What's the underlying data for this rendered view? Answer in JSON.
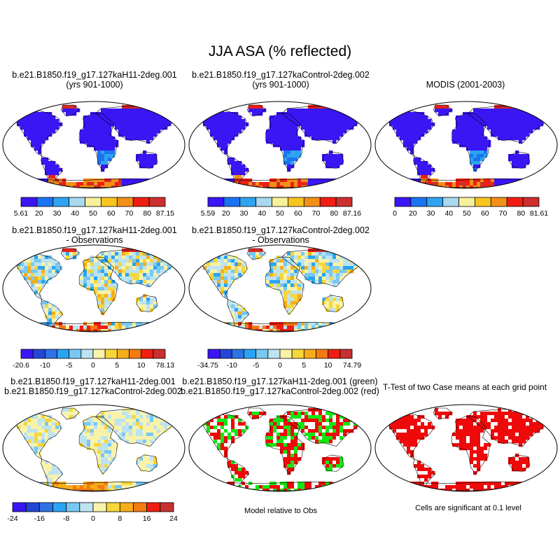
{
  "title": "JJA ASA (% reflected)",
  "panels": [
    {
      "id": "p1",
      "line1": "b.e21.B1850.f19_g17.127kaH11-2deg.001",
      "line2": "(yrs 901-1000)",
      "style": "abs"
    },
    {
      "id": "p2",
      "line1": "b.e21.B1850.f19_g17.127kaControl-2deg.002",
      "line2": "(yrs 901-1000)",
      "style": "abs"
    },
    {
      "id": "p3",
      "line1": "MODIS (2001-2003)",
      "line2": "",
      "style": "obs"
    },
    {
      "id": "p4",
      "line1": "b.e21.B1850.f19_g17.127kaH11-2deg.001",
      "line2": "- Observations",
      "style": "diff"
    },
    {
      "id": "p5",
      "line1": "b.e21.B1850.f19_g17.127kaControl-2deg.002",
      "line2": "- Observations",
      "style": "diff"
    },
    {
      "id": "p7",
      "line1": "b.e21.B1850.f19_g17.127kaH11-2deg.001",
      "line2": "b.e21.B1850.f19_g17.127kaControl-2deg.002",
      "style": "casediff"
    },
    {
      "id": "p8",
      "line1": "b.e21.B1850.f19_g17.127kaH11-2deg.001 (green)",
      "line2": "b.e21.B1850.f19_g17.127kaControl-2deg.002 (red)",
      "style": "greenred"
    },
    {
      "id": "p9",
      "line1": "T-Test of two Case means at each grid point",
      "line2": "",
      "style": "ttest"
    }
  ],
  "notes": {
    "model_relative": "Model relative to Obs",
    "significance": "Cells are significant at 0.1 level"
  },
  "colors": {
    "abs_bar": [
      "#3a16f5",
      "#1a74f2",
      "#2ea4f0",
      "#a8d9ef",
      "#f7f09b",
      "#f7c420",
      "#f29018",
      "#ef1e12",
      "#cd2e2e"
    ],
    "diff_bar": [
      "#3a16f5",
      "#2446d4",
      "#2d73e6",
      "#2aa4f2",
      "#78c8f2",
      "#bde3f2",
      "#f8f3a8",
      "#f7d63a",
      "#f6ad1a",
      "#f47a14",
      "#ef1e12",
      "#c93030"
    ],
    "case_bar": [
      "#3a16f5",
      "#2446d4",
      "#2d73e6",
      "#2aa4f2",
      "#78c8f2",
      "#bde3f2",
      "#f8f3a8",
      "#f7d63a",
      "#f6ad1a",
      "#f47a14",
      "#ef1e12",
      "#c93030"
    ],
    "green": "#14e614",
    "red": "#ee0a0a"
  },
  "chart_data": [
    {
      "type": "heatmap",
      "panel": "p1",
      "colorbar_labels": [
        "5.61",
        "20",
        "30",
        "40",
        "50",
        "60",
        "70",
        "80",
        "87.15"
      ]
    },
    {
      "type": "heatmap",
      "panel": "p2",
      "colorbar_labels": [
        "5.59",
        "20",
        "30",
        "40",
        "50",
        "60",
        "70",
        "80",
        "87.16"
      ]
    },
    {
      "type": "heatmap",
      "panel": "p3",
      "colorbar_labels": [
        "0",
        "20",
        "30",
        "40",
        "50",
        "60",
        "70",
        "80",
        "81.61"
      ]
    },
    {
      "type": "heatmap",
      "panel": "p4",
      "colorbar_labels": [
        "-20.6",
        "-10",
        "-5",
        "0",
        "5",
        "10",
        "78.13"
      ]
    },
    {
      "type": "heatmap",
      "panel": "p5",
      "colorbar_labels": [
        "-34.75",
        "-10",
        "-5",
        "0",
        "5",
        "10",
        "74.79"
      ]
    },
    {
      "type": "heatmap",
      "panel": "p7",
      "colorbar_labels": [
        "-24",
        "-16",
        "-8",
        "0",
        "8",
        "16",
        "24"
      ]
    },
    {
      "type": "heatmap",
      "panel": "p8",
      "colorbar_labels": []
    },
    {
      "type": "heatmap",
      "panel": "p9",
      "colorbar_labels": []
    }
  ]
}
